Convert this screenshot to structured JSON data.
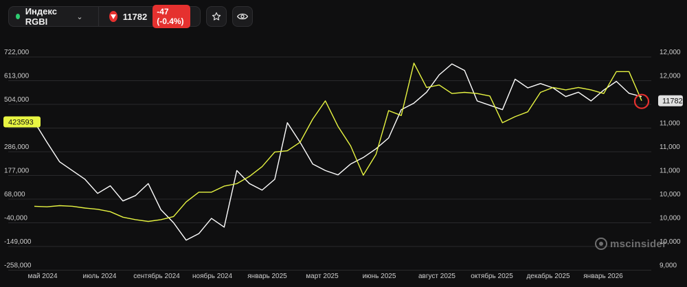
{
  "toolbar": {
    "index_name": "Индекс RGBI",
    "price": "11782",
    "change": "-47 (-0.4%)",
    "status_color": "#2ecc71",
    "down_color": "#e5312f"
  },
  "watermark": "mscinsider",
  "chart_data": {
    "type": "line",
    "x_ticks": [
      "май 2024",
      "июль 2024",
      "сентябрь 2024",
      "ноябрь 2024",
      "январь 2025",
      "март 2025",
      "июнь 2025",
      "август 2025",
      "октябрь 2025",
      "декабрь 2025",
      "январь 2026"
    ],
    "left_axis": {
      "ticks": [
        "722,000",
        "613,000",
        "504,000",
        "395,000",
        "286,000",
        "177,000",
        "68,000",
        "-40,000",
        "-149,000",
        "-258,000"
      ],
      "ylim": [
        -258000,
        722000
      ]
    },
    "right_axis": {
      "ticks": [
        "12,000",
        "12,000",
        "12,000",
        "11,000",
        "11,000",
        "11,000",
        "10,000",
        "10,000",
        "10,000",
        "9,000"
      ]
    },
    "left_marker": "423593",
    "right_marker": "11782",
    "series": [
      {
        "color": "#ffffff",
        "axis": "left",
        "values": [
          423593,
          330000,
          240000,
          200000,
          160000,
          95000,
          130000,
          60000,
          85000,
          140000,
          20000,
          -40000,
          -120000,
          -90000,
          -20000,
          -60000,
          200000,
          140000,
          110000,
          160000,
          420000,
          330000,
          230000,
          200000,
          180000,
          230000,
          260000,
          300000,
          350000,
          480000,
          510000,
          560000,
          640000,
          690000,
          660000,
          520000,
          500000,
          480000,
          620000,
          580000,
          600000,
          580000,
          540000,
          560000,
          520000,
          570000,
          610000,
          555000,
          540000
        ]
      },
      {
        "color": "#e8f542",
        "axis": "right",
        "values": [
          10050,
          10040,
          10060,
          10050,
          10020,
          10000,
          9960,
          9870,
          9830,
          9800,
          9830,
          9880,
          10120,
          10280,
          10280,
          10380,
          10420,
          10540,
          10700,
          10940,
          10960,
          11100,
          11480,
          11780,
          11360,
          11040,
          10560,
          10900,
          11620,
          11540,
          12400,
          12000,
          12040,
          11900,
          11920,
          11900,
          11860,
          11420,
          11520,
          11600,
          11920,
          12000,
          11960,
          12000,
          11960,
          11900,
          12260,
          12260,
          11782
        ]
      }
    ]
  }
}
